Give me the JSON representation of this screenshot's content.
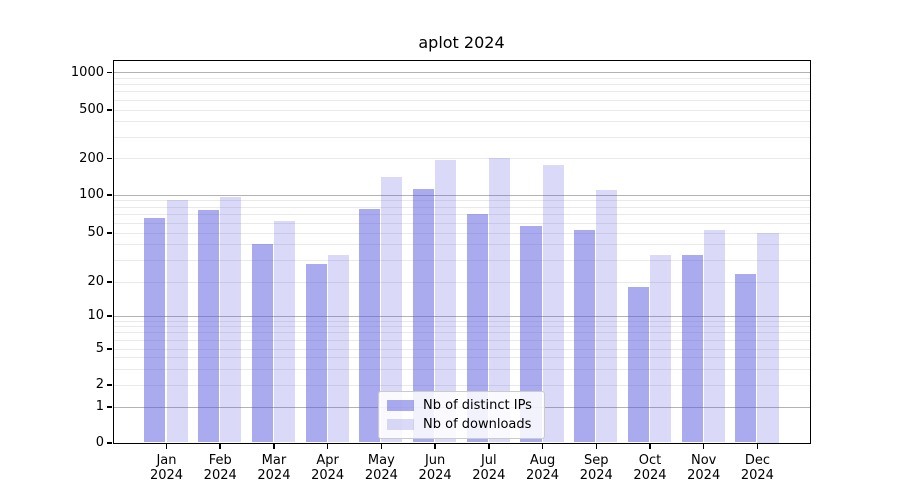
{
  "chart_data": {
    "type": "bar",
    "title": "aplot 2024",
    "categories": [
      "Jan 2024",
      "Feb 2024",
      "Mar 2024",
      "Apr 2024",
      "May 2024",
      "Jun 2024",
      "Jul 2024",
      "Aug 2024",
      "Sep 2024",
      "Oct 2024",
      "Nov 2024",
      "Dec 2024"
    ],
    "series": [
      {
        "name": "Nb of distinct IPs",
        "color_hex_over_white": "#aaaaee",
        "fill_rgba": "rgba(85,85,221,0.50)",
        "values": [
          65,
          75,
          40,
          28,
          77,
          112,
          70,
          56,
          52,
          18,
          33,
          23
        ]
      },
      {
        "name": "Nb of downloads",
        "color_hex_over_white": "#dadaf8",
        "fill_rgba": "rgba(85,85,221,0.22)",
        "values": [
          90,
          96,
          62,
          33,
          140,
          192,
          199,
          176,
          108,
          33,
          52,
          50
        ]
      }
    ],
    "yscale": "symlog",
    "yticks": [
      0,
      1,
      2,
      5,
      10,
      20,
      50,
      100,
      200,
      500,
      1000
    ],
    "ylim": [
      0,
      1250
    ],
    "xlabel": "",
    "ylabel": "",
    "grid": true,
    "major_grid_values": [
      1,
      10,
      100,
      1000
    ],
    "legend_position": "lower center",
    "colors": {
      "grid_major": "#b3b3b3",
      "grid_minor": "#e9e9e9",
      "axes_edge": "#000000",
      "legend_border": "#cbcbcb",
      "text": "#000000",
      "background": "#ffffff"
    }
  }
}
